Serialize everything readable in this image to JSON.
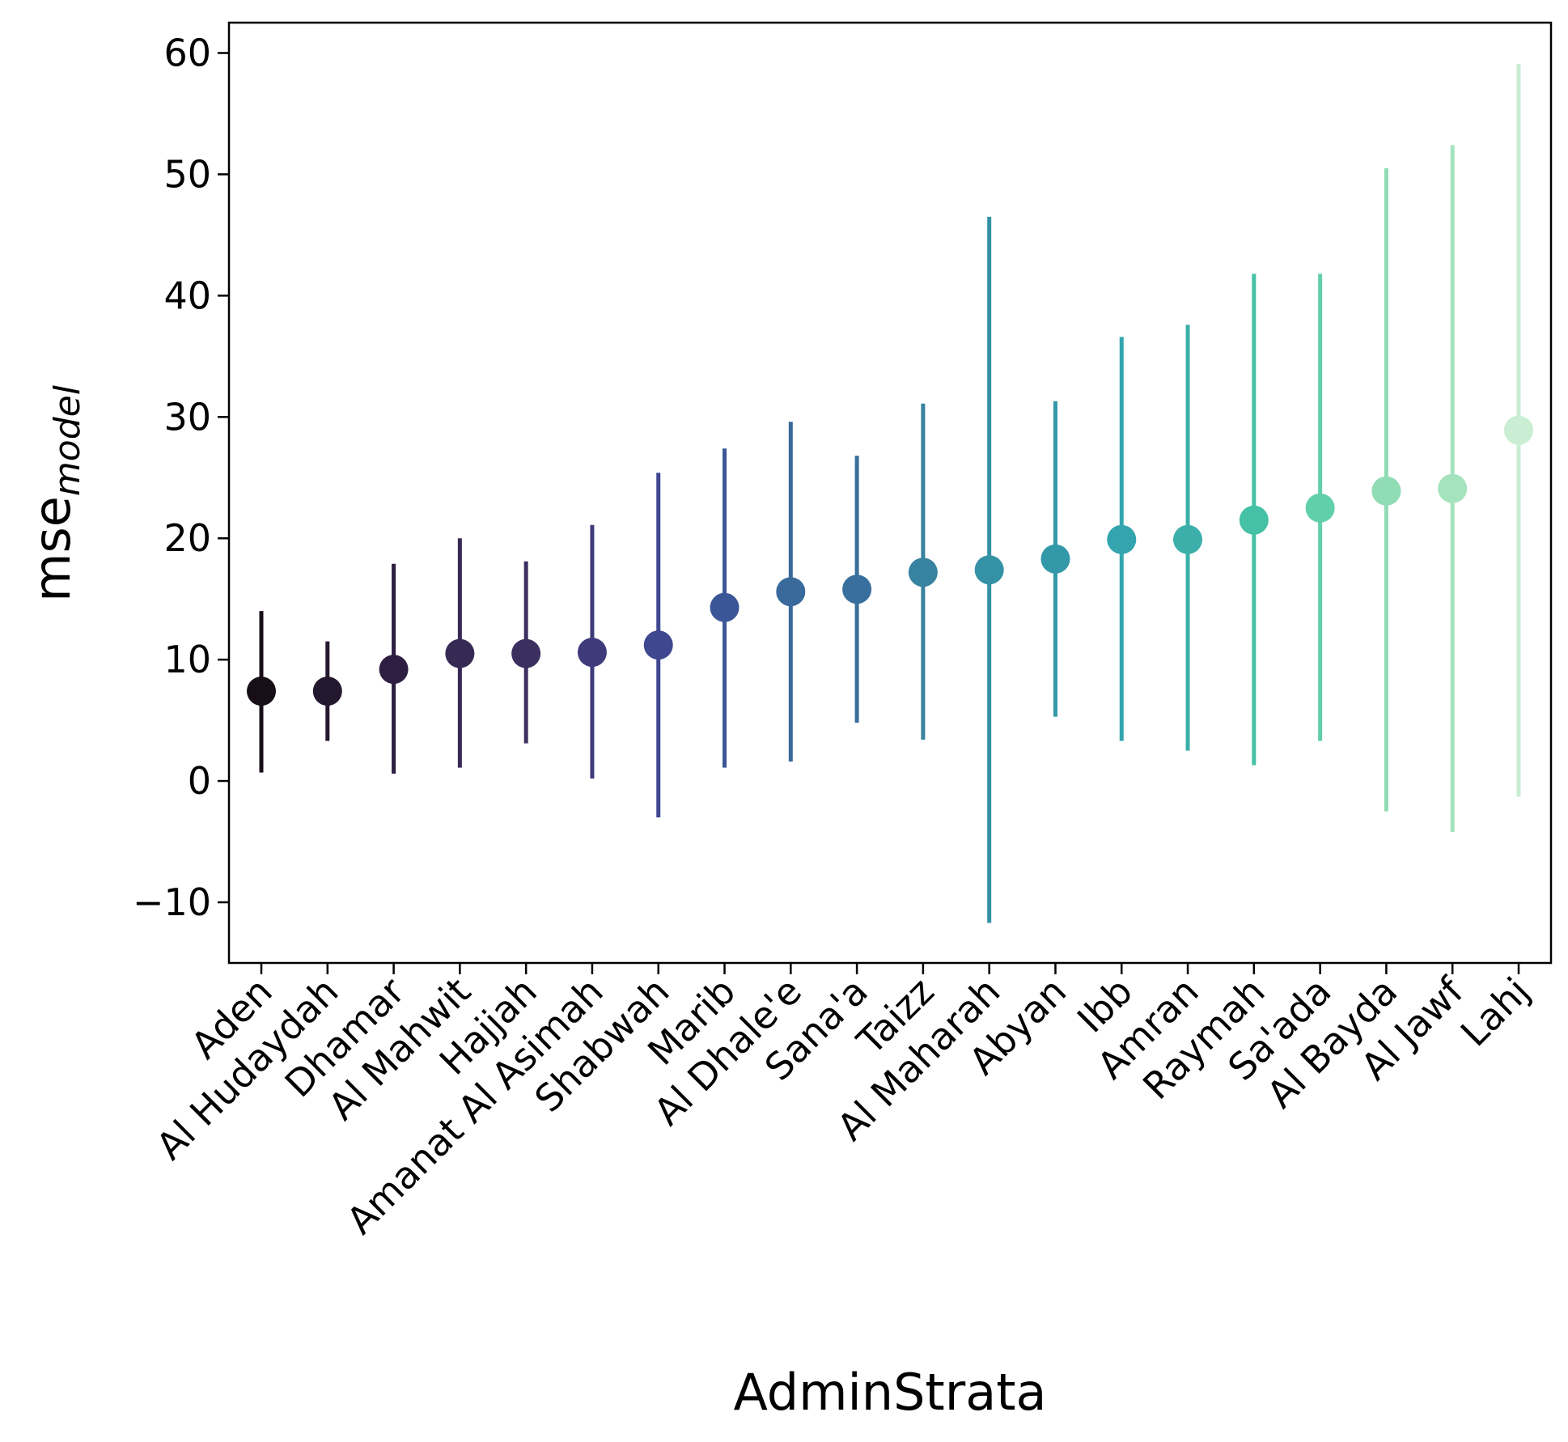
{
  "chart_data": {
    "type": "scatter",
    "xlabel": "AdminStrata",
    "ylabel": {
      "main": "mse",
      "sub": "model"
    },
    "ylim": [
      -15,
      62.5
    ],
    "yticks": [
      -10,
      0,
      10,
      20,
      30,
      40,
      50,
      60
    ],
    "ytick_labels": [
      "−10",
      "0",
      "10",
      "20",
      "30",
      "40",
      "50",
      "60"
    ],
    "grid": false,
    "legend": "none",
    "categories": [
      "Aden",
      "Al Hudaydah",
      "Dhamar",
      "Al Mahwit",
      "Hajjah",
      "Amanat Al Asimah",
      "Shabwah",
      "Marib",
      "Al Dhale'e",
      "Sana'a",
      "Taizz",
      "Al Maharah",
      "Abyan",
      "Ibb",
      "Amran",
      "Raymah",
      "Sa'ada",
      "Al Bayda",
      "Al Jawf",
      "Lahj"
    ],
    "series": [
      {
        "values": [
          7.4,
          7.4,
          9.2,
          10.5,
          10.5,
          10.6,
          11.2,
          14.3,
          15.6,
          15.8,
          17.2,
          17.4,
          18.3,
          19.9,
          19.9,
          21.5,
          22.5,
          23.9,
          24.1,
          28.9
        ],
        "error_low": [
          0.7,
          3.3,
          0.6,
          1.1,
          3.1,
          0.2,
          -3.0,
          1.1,
          1.6,
          4.8,
          3.4,
          -11.7,
          5.3,
          3.3,
          2.5,
          1.3,
          3.3,
          -2.5,
          -4.2,
          -1.3
        ],
        "error_high": [
          14.0,
          11.5,
          17.9,
          20.0,
          18.1,
          21.1,
          25.4,
          27.4,
          29.6,
          26.8,
          31.1,
          46.5,
          31.3,
          36.6,
          37.6,
          41.8,
          41.8,
          50.5,
          52.4,
          59.1
        ]
      }
    ],
    "colors": [
      "#170e18",
      "#24182f",
      "#2e1f42",
      "#362a54",
      "#3b2f60",
      "#3f3a7a",
      "#3f4790",
      "#3b5697",
      "#396a9b",
      "#386f9d",
      "#37829f",
      "#3591a5",
      "#3399a9",
      "#34a5ae",
      "#3dafaa",
      "#45c1a5",
      "#62cfab",
      "#8fdcb5",
      "#a4e3bd",
      "#c9eed3"
    ]
  }
}
